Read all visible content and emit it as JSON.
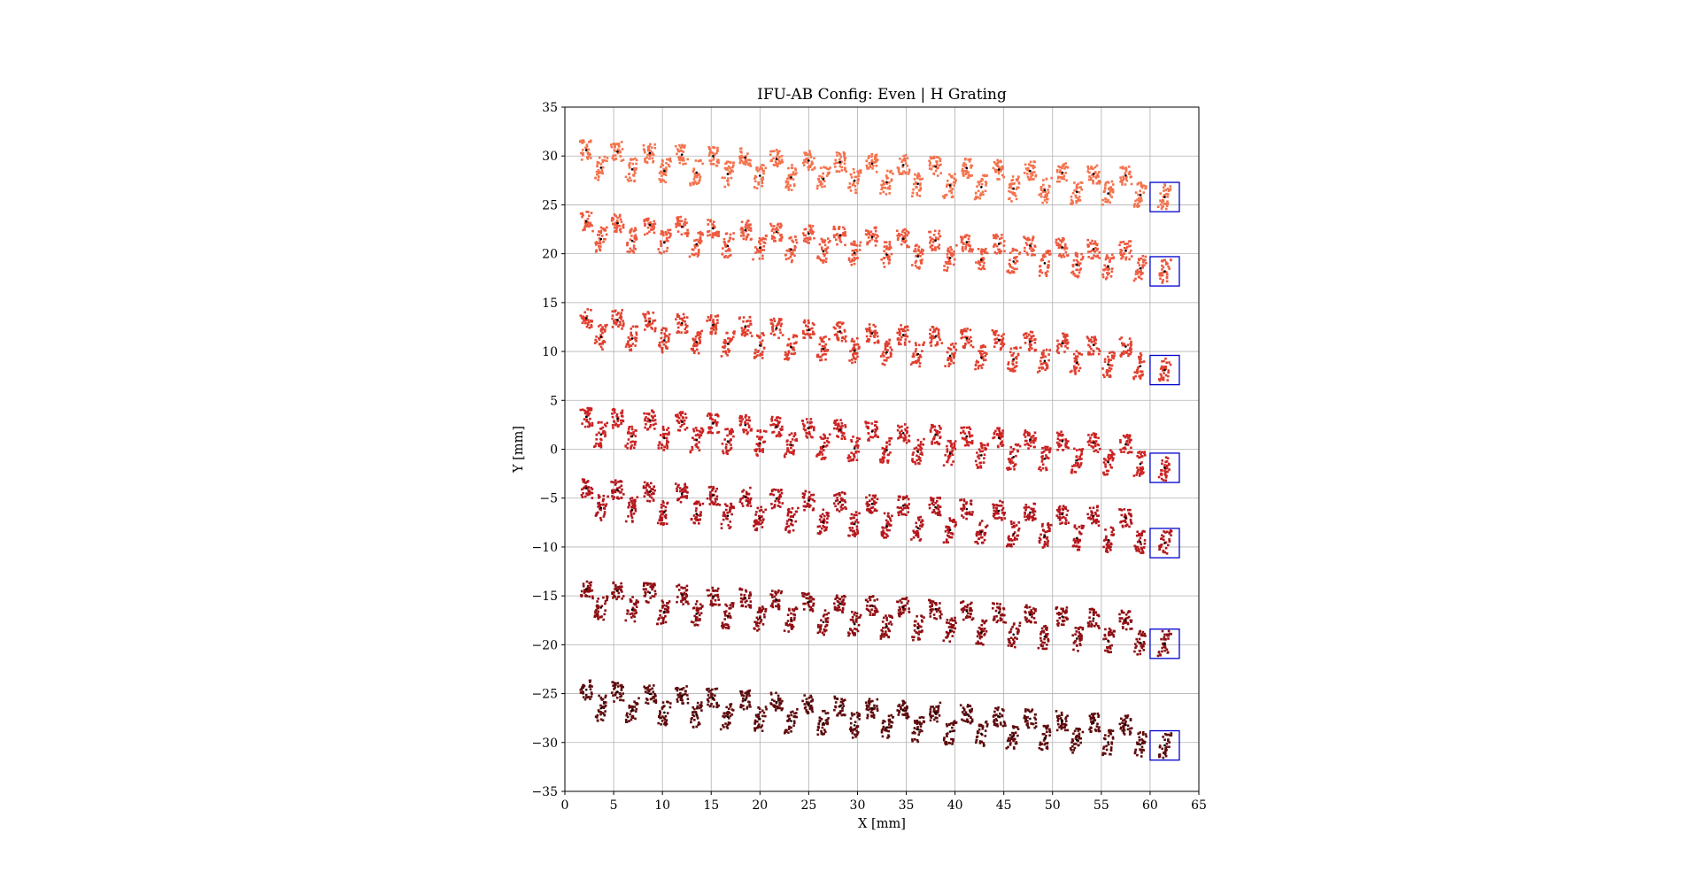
{
  "chart_data": {
    "type": "scatter",
    "title": "IFU-AB Config: Even | H Grating",
    "xlabel": "X [mm]",
    "ylabel": "Y [mm]",
    "xlim": [
      0,
      65
    ],
    "ylim": [
      -35,
      35
    ],
    "xticks": [
      0,
      5,
      10,
      15,
      20,
      25,
      30,
      35,
      40,
      45,
      50,
      55,
      60,
      65
    ],
    "yticks": [
      -35,
      -30,
      -25,
      -20,
      -15,
      -10,
      -5,
      0,
      5,
      10,
      15,
      20,
      25,
      30,
      35
    ],
    "grid": true,
    "legend": "none",
    "rows": [
      {
        "color": "#f4734e",
        "y_upper_start": 30.6,
        "y_upper_end": 28.0,
        "y_lower_start": 28.8,
        "y_lower_end": 26.0,
        "box_center": [
          61.5,
          25.8
        ]
      },
      {
        "color": "#ee5a3f",
        "y_upper_start": 23.3,
        "y_upper_end": 20.3,
        "y_lower_start": 21.5,
        "y_lower_end": 18.5,
        "box_center": [
          61.5,
          18.2
        ]
      },
      {
        "color": "#e0402f",
        "y_upper_start": 13.4,
        "y_upper_end": 10.5,
        "y_lower_start": 11.5,
        "y_lower_end": 8.5,
        "box_center": [
          61.5,
          8.1
        ]
      },
      {
        "color": "#cc2222",
        "y_upper_start": 3.3,
        "y_upper_end": 0.5,
        "y_lower_start": 1.5,
        "y_lower_end": -1.5,
        "box_center": [
          61.5,
          -1.9
        ]
      },
      {
        "color": "#b4161c",
        "y_upper_start": -4.0,
        "y_upper_end": -7.0,
        "y_lower_start": -6.0,
        "y_lower_end": -9.5,
        "box_center": [
          61.5,
          -9.6
        ]
      },
      {
        "color": "#8e0e12",
        "y_upper_start": -14.3,
        "y_upper_end": -17.5,
        "y_lower_start": -16.2,
        "y_lower_end": -19.8,
        "box_center": [
          61.5,
          -19.9
        ]
      },
      {
        "color": "#5e0a0c",
        "y_upper_start": -24.6,
        "y_upper_end": -28.2,
        "y_lower_start": -26.5,
        "y_lower_end": -30.2,
        "box_center": [
          61.5,
          -30.3
        ]
      }
    ],
    "columns_x": [
      2.2,
      5.4,
      8.7,
      12.0,
      15.2,
      18.5,
      21.7,
      25.0,
      28.2,
      31.5,
      34.7,
      38.0,
      41.2,
      44.5,
      47.7,
      51.0,
      54.2,
      57.5
    ],
    "lower_offset_x": 1.5,
    "box_size": [
      3.0,
      3.0
    ],
    "box_color": "#0000cc",
    "center_marker_color": "#000000"
  }
}
